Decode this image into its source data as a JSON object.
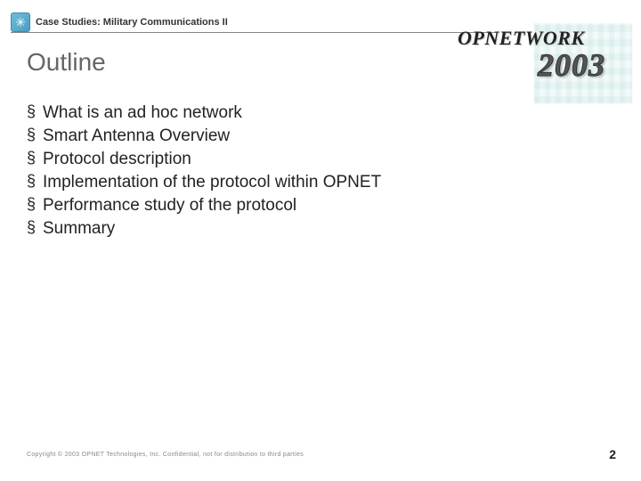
{
  "header": {
    "label": "Case Studies: Military Communications II"
  },
  "logo": {
    "brand": "OPNETWORK",
    "year": "2003"
  },
  "title": "Outline",
  "bullets": [
    "What is an ad hoc network",
    "Smart Antenna Overview",
    "Protocol description",
    "Implementation of the protocol within OPNET",
    "Performance study of the protocol",
    "Summary"
  ],
  "footer": "Copyright © 2003 OPNET Technologies, Inc.  Confidential, not for distribution to third parties",
  "page": "2"
}
